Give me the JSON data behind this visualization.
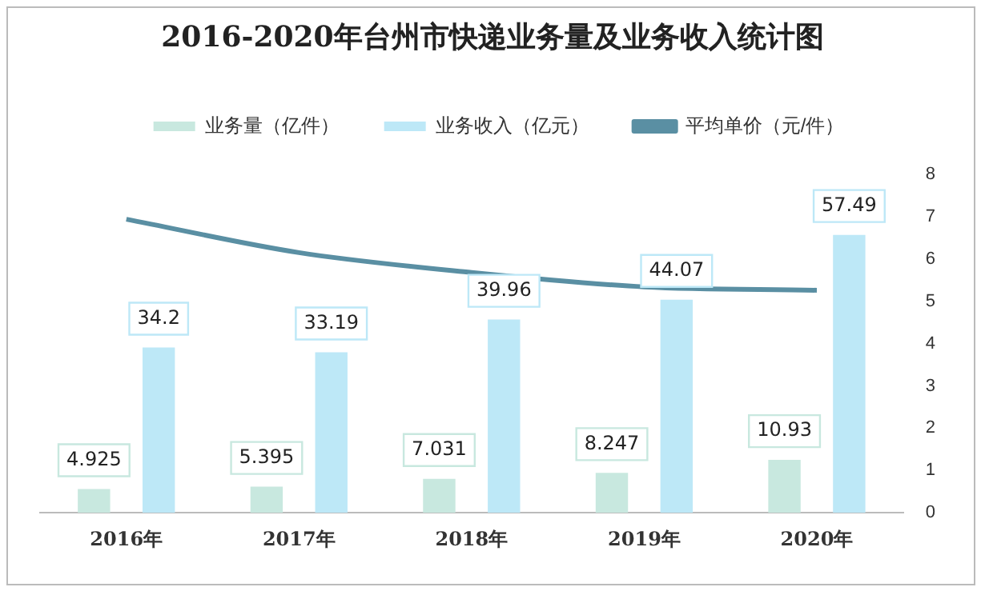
{
  "chart_data": {
    "type": "bar",
    "title": "2016-2020年台州市快递业务量及业务收入统计图",
    "categories": [
      "2016年",
      "2017年",
      "2018年",
      "2019年",
      "2020年"
    ],
    "series": [
      {
        "name": "业务量（亿件）",
        "color": "#c8e8df",
        "values": [
          4.925,
          5.395,
          7.031,
          8.247,
          10.93
        ],
        "value_labels": [
          "4.925",
          "5.395",
          "7.031",
          "8.247",
          "10.93"
        ]
      },
      {
        "name": "业务收入（亿元）",
        "color": "#bde8f7",
        "values": [
          34.2,
          33.19,
          39.96,
          44.07,
          57.49
        ],
        "value_labels": [
          "34.2",
          "33.19",
          "39.96",
          "44.07",
          "57.49"
        ]
      },
      {
        "name": "平均单价（元/件）",
        "type": "line",
        "axis": "y2",
        "color": "#5a8fa3",
        "values": [
          6.94,
          6.15,
          5.68,
          5.34,
          5.26
        ],
        "marker": "none"
      }
    ],
    "y2lim": [
      0,
      8
    ],
    "y2ticks": [
      0,
      1,
      2,
      3,
      4,
      5,
      6,
      7,
      8
    ],
    "grid": false,
    "legend": "top"
  }
}
